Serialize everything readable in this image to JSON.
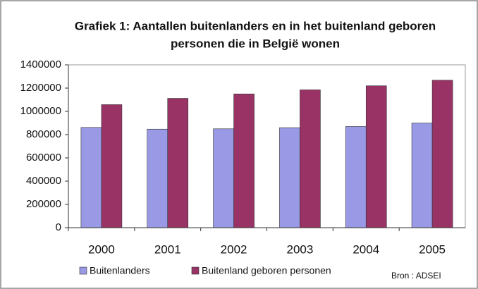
{
  "chart_data": {
    "type": "bar",
    "title": [
      "Grafiek 1: Aantallen buitenlanders en in het buitenland geboren",
      "personen die in België wonen"
    ],
    "categories": [
      "2000",
      "2001",
      "2002",
      "2003",
      "2004",
      "2005"
    ],
    "series": [
      {
        "name": "Buitenlanders",
        "color": "#9999e6",
        "values": [
          862000,
          847000,
          850000,
          860000,
          870000,
          900000
        ]
      },
      {
        "name": "Buitenland geboren personen",
        "color": "#993366",
        "values": [
          1058000,
          1112000,
          1150000,
          1185000,
          1220000,
          1268000
        ]
      }
    ],
    "ylim": [
      0,
      1400000
    ],
    "yticks": [
      0,
      200000,
      400000,
      600000,
      800000,
      1000000,
      1200000,
      1400000
    ],
    "grid": false,
    "legend": "bottom",
    "annotation": "Bron : ADSEI"
  }
}
